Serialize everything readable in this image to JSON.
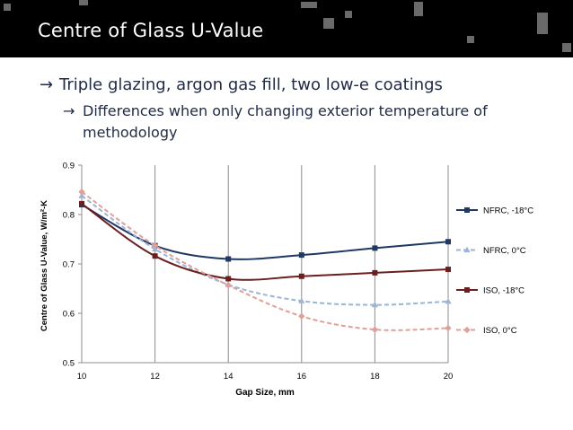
{
  "slide": {
    "title": "Centre of Glass U-Value",
    "bullet1": "Triple glazing, argon gas fill, two low-e coatings",
    "bullet2_line1": "Differences when only changing exterior temperature of",
    "bullet2_line2": "methodology",
    "arrow_glyph": "→"
  },
  "chart_data": {
    "type": "line",
    "title": "",
    "xlabel": "Gap Size, mm",
    "ylabel": "Centre of Glass U-Value, W/m²-K",
    "x": [
      10,
      12,
      14,
      16,
      18,
      20
    ],
    "xlim": [
      10,
      20
    ],
    "ylim": [
      0.5,
      0.9
    ],
    "xticks": [
      "10",
      "12",
      "14",
      "16",
      "18",
      "20"
    ],
    "yticks": [
      "0.5",
      "0.6",
      "0.7",
      "0.8",
      "0.9"
    ],
    "grid": "vertical",
    "legend": "right",
    "series": [
      {
        "name": "NFRC, -18°C",
        "values": [
          0.82,
          0.737,
          0.71,
          0.718,
          0.732,
          0.745
        ],
        "color": "#1f3864",
        "dashed": false,
        "marker": "square"
      },
      {
        "name": "NFRC, 0°C",
        "values": [
          0.838,
          0.73,
          0.658,
          0.625,
          0.617,
          0.624
        ],
        "color": "#9ab5d6",
        "dashed": true,
        "marker": "triangle"
      },
      {
        "name": "ISO, -18°C",
        "values": [
          0.822,
          0.716,
          0.67,
          0.675,
          0.682,
          0.689
        ],
        "color": "#6b1f1f",
        "dashed": false,
        "marker": "square"
      },
      {
        "name": "ISO, 0°C",
        "values": [
          0.846,
          0.737,
          0.657,
          0.594,
          0.567,
          0.57
        ],
        "color": "#e0a09a",
        "dashed": true,
        "marker": "diamond"
      }
    ]
  }
}
